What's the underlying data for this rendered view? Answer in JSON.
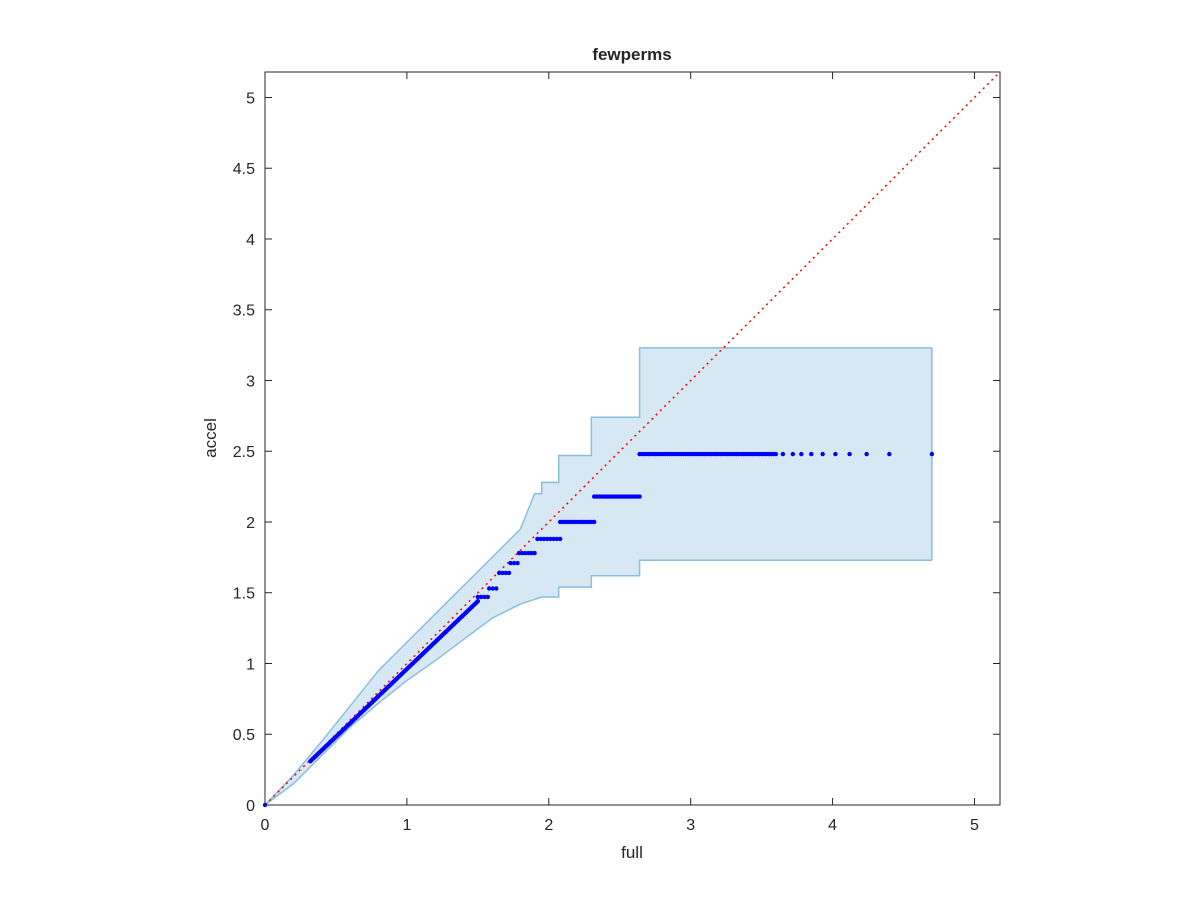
{
  "chart_data": {
    "type": "scatter",
    "title": "fewperms",
    "xlabel": "full",
    "ylabel": "accel",
    "xlim": [
      0,
      5.18
    ],
    "ylim": [
      0,
      5.18
    ],
    "xticks": [
      0,
      1,
      2,
      3,
      4,
      5
    ],
    "yticks": [
      0,
      0.5,
      1,
      1.5,
      2,
      2.5,
      3,
      3.5,
      4,
      4.5,
      5
    ],
    "xtick_labels": [
      "0",
      "1",
      "2",
      "3",
      "4",
      "5"
    ],
    "ytick_labels": [
      "0",
      "0.5",
      "1",
      "1.5",
      "2",
      "2.5",
      "3",
      "3.5",
      "4",
      "4.5",
      "5"
    ],
    "grid": false,
    "reference_line": {
      "style": "dotted",
      "color": "#ff0000",
      "from": [
        0,
        0
      ],
      "to": [
        5.18,
        5.18
      ]
    },
    "confidence_band": {
      "fill": "#d6e8f4",
      "stroke": "#8cbfdd",
      "upper": [
        [
          0,
          0
        ],
        [
          0.2,
          0.21
        ],
        [
          0.4,
          0.45
        ],
        [
          0.6,
          0.7
        ],
        [
          0.8,
          0.95
        ],
        [
          1.0,
          1.15
        ],
        [
          1.2,
          1.35
        ],
        [
          1.4,
          1.55
        ],
        [
          1.6,
          1.75
        ],
        [
          1.8,
          1.95
        ],
        [
          1.9,
          2.2
        ],
        [
          1.95,
          2.2
        ],
        [
          1.95,
          2.28
        ],
        [
          2.07,
          2.28
        ],
        [
          2.07,
          2.47
        ],
        [
          2.3,
          2.47
        ],
        [
          2.3,
          2.74
        ],
        [
          2.64,
          2.74
        ],
        [
          2.64,
          3.23
        ],
        [
          4.7,
          3.23
        ]
      ],
      "lower": [
        [
          0,
          0
        ],
        [
          0.2,
          0.15
        ],
        [
          0.4,
          0.35
        ],
        [
          0.6,
          0.55
        ],
        [
          0.8,
          0.72
        ],
        [
          1.0,
          0.88
        ],
        [
          1.2,
          1.02
        ],
        [
          1.4,
          1.17
        ],
        [
          1.6,
          1.32
        ],
        [
          1.8,
          1.42
        ],
        [
          1.95,
          1.47
        ],
        [
          2.07,
          1.47
        ],
        [
          2.07,
          1.54
        ],
        [
          2.3,
          1.54
        ],
        [
          2.3,
          1.62
        ],
        [
          2.64,
          1.62
        ],
        [
          2.64,
          1.73
        ],
        [
          4.7,
          1.73
        ]
      ]
    },
    "series": [
      {
        "color": "#0000ff",
        "segments": [
          {
            "x0": 0.32,
            "x1": 1.5,
            "y0": 0.31,
            "y1": 1.44,
            "n": 120
          },
          {
            "x0": 1.5,
            "x1": 1.57,
            "y0": 1.47,
            "y1": 1.47,
            "n": 4
          },
          {
            "x0": 1.58,
            "x1": 1.63,
            "y0": 1.53,
            "y1": 1.53,
            "n": 3
          },
          {
            "x0": 1.65,
            "x1": 1.72,
            "y0": 1.64,
            "y1": 1.64,
            "n": 4
          },
          {
            "x0": 1.73,
            "x1": 1.78,
            "y0": 1.71,
            "y1": 1.71,
            "n": 3
          },
          {
            "x0": 1.79,
            "x1": 1.9,
            "y0": 1.78,
            "y1": 1.78,
            "n": 6
          },
          {
            "x0": 1.92,
            "x1": 2.08,
            "y0": 1.88,
            "y1": 1.88,
            "n": 8
          },
          {
            "x0": 2.08,
            "x1": 2.32,
            "y0": 2.0,
            "y1": 2.0,
            "n": 14
          },
          {
            "x0": 2.32,
            "x1": 2.64,
            "y0": 2.18,
            "y1": 2.18,
            "n": 18
          },
          {
            "x0": 2.64,
            "x1": 3.6,
            "y0": 2.48,
            "y1": 2.48,
            "n": 60
          }
        ],
        "extra_points": [
          [
            0.0,
            0.0
          ],
          [
            3.65,
            2.48
          ],
          [
            3.72,
            2.48
          ],
          [
            3.78,
            2.48
          ],
          [
            3.85,
            2.48
          ],
          [
            3.93,
            2.48
          ],
          [
            4.02,
            2.48
          ],
          [
            4.12,
            2.48
          ],
          [
            4.24,
            2.48
          ],
          [
            4.4,
            2.48
          ],
          [
            4.7,
            2.48
          ]
        ]
      }
    ]
  }
}
